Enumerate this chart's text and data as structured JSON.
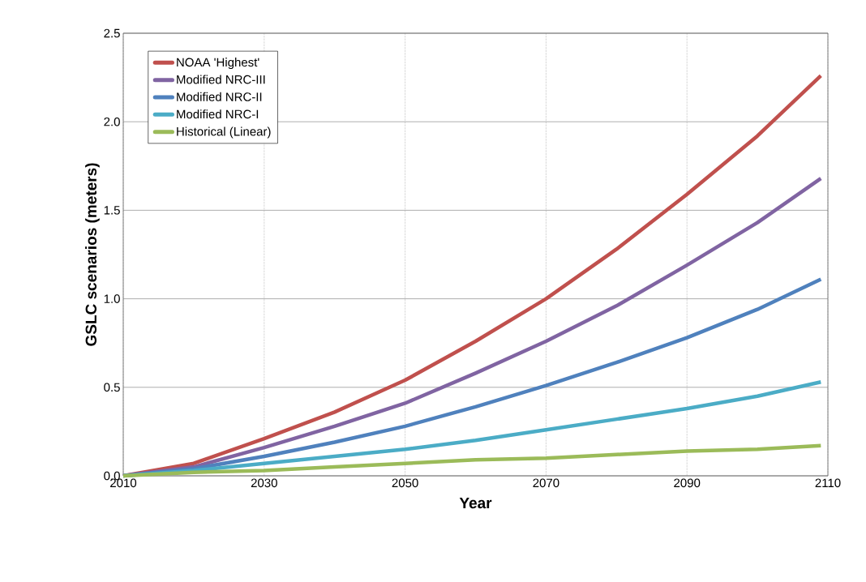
{
  "chart_data": {
    "type": "line",
    "xlabel": "Year",
    "ylabel": "GSLC scenarios (meters)",
    "xlim": [
      2010,
      2110
    ],
    "xticks": [
      2010,
      2030,
      2050,
      2070,
      2090,
      2110
    ],
    "ylim": [
      0,
      2.5
    ],
    "yticks": [
      {
        "value": 0,
        "label": "0.0"
      },
      {
        "value": 0.5,
        "label": "0.5"
      },
      {
        "value": 1,
        "label": "1.0"
      },
      {
        "value": 1.5,
        "label": "1.5"
      },
      {
        "value": 2,
        "label": "2.0"
      },
      {
        "value": 2.5,
        "label": "2.5"
      }
    ],
    "grid": true,
    "legend": "top left",
    "marker": "none",
    "line_style": "solid",
    "x": [
      2010,
      2020,
      2030,
      2040,
      2050,
      2060,
      2070,
      2080,
      2090,
      2100,
      2109
    ],
    "series": [
      {
        "name": "NOAA 'Highest'",
        "color": "#c0504d",
        "values": [
          0,
          0.07,
          0.21,
          0.36,
          0.54,
          0.76,
          1.0,
          1.28,
          1.59,
          1.92,
          2.26
        ]
      },
      {
        "name": "Modified NRC-III",
        "color": "#8064a2",
        "values": [
          0,
          0.05,
          0.16,
          0.28,
          0.41,
          0.58,
          0.76,
          0.96,
          1.19,
          1.43,
          1.68
        ]
      },
      {
        "name": "Modified NRC-II",
        "color": "#4f81bd",
        "values": [
          0,
          0.04,
          0.11,
          0.19,
          0.28,
          0.39,
          0.51,
          0.64,
          0.78,
          0.94,
          1.11
        ]
      },
      {
        "name": "Modified NRC-I",
        "color": "#4bacc6",
        "values": [
          0,
          0.03,
          0.07,
          0.11,
          0.15,
          0.2,
          0.26,
          0.32,
          0.38,
          0.45,
          0.53
        ]
      },
      {
        "name": "Historical (Linear)",
        "color": "#9bbb59",
        "values": [
          0,
          0.02,
          0.03,
          0.05,
          0.07,
          0.09,
          0.1,
          0.12,
          0.14,
          0.15,
          0.17
        ]
      }
    ]
  }
}
